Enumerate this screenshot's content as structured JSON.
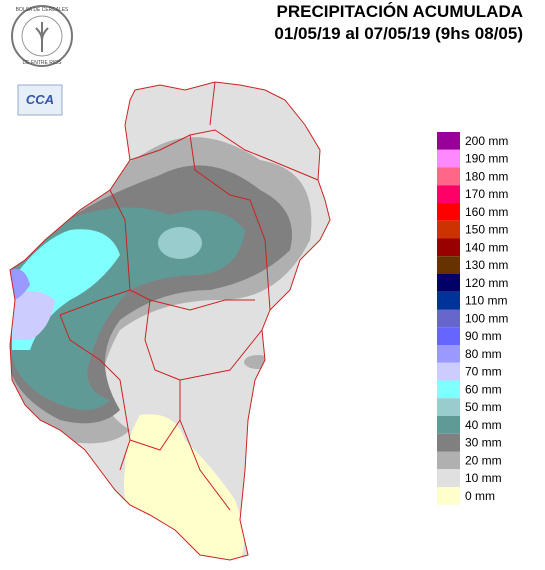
{
  "header": {
    "title": "PRECIPITACIÓN ACUMULADA",
    "subtitle": "01/05/19 al 07/05/19 (9hs 08/05)"
  },
  "logo": {
    "top_text": "BOLSA DE CEREALES",
    "bottom_text": "DE ENTRE RIOS",
    "badge": "CCA"
  },
  "legend": {
    "items": [
      {
        "label": "200 mm",
        "color": "#990099"
      },
      {
        "label": "190 mm",
        "color": "#ff88ff"
      },
      {
        "label": "180 mm",
        "color": "#ff6688"
      },
      {
        "label": "170 mm",
        "color": "#ff0066"
      },
      {
        "label": "160 mm",
        "color": "#ff0000"
      },
      {
        "label": "150 mm",
        "color": "#cc3300"
      },
      {
        "label": "140 mm",
        "color": "#990000"
      },
      {
        "label": "130 mm",
        "color": "#663300"
      },
      {
        "label": "120 mm",
        "color": "#000066"
      },
      {
        "label": "110 mm",
        "color": "#003399"
      },
      {
        "label": "100 mm",
        "color": "#6666cc"
      },
      {
        "label": "90 mm",
        "color": "#6666ff"
      },
      {
        "label": "80 mm",
        "color": "#9999ff"
      },
      {
        "label": "70 mm",
        "color": "#ccccff"
      },
      {
        "label": "60 mm",
        "color": "#80ffff"
      },
      {
        "label": "50 mm",
        "color": "#99cccc"
      },
      {
        "label": "40 mm",
        "color": "#5f9a96"
      },
      {
        "label": "30 mm",
        "color": "#808080"
      },
      {
        "label": "20 mm",
        "color": "#b0b0b0"
      },
      {
        "label": "10 mm",
        "color": "#e0e0e0"
      },
      {
        "label": "0 mm",
        "color": "#ffffcc"
      }
    ]
  }
}
